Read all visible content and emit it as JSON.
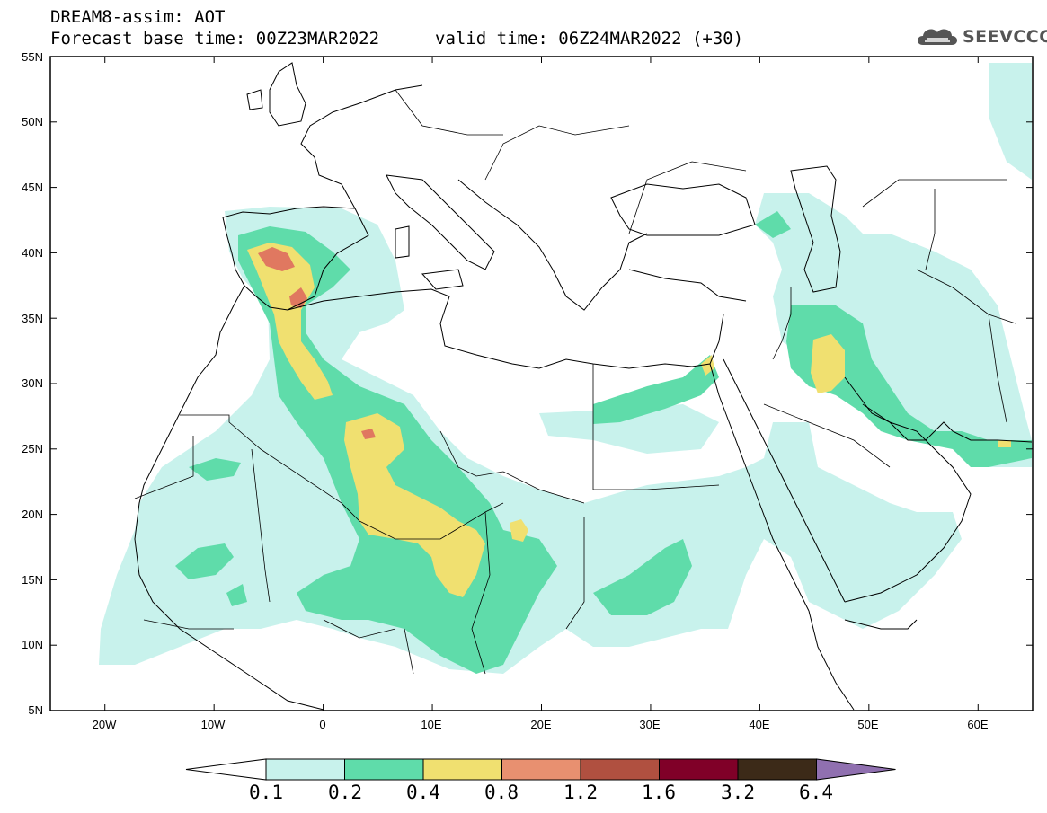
{
  "header": {
    "line1": "DREAM8-assim: AOT",
    "line2": "Forecast base time: 00Z23MAR2022",
    "valid_time": "valid time: 06Z24MAR2022 (+30)",
    "logo_text": "SEEVCCC"
  },
  "axes": {
    "lat_labels": [
      "55N",
      "50N",
      "45N",
      "40N",
      "35N",
      "30N",
      "25N",
      "20N",
      "15N",
      "10N",
      "5N"
    ],
    "lon_labels": [
      "20W",
      "10W",
      "0",
      "10E",
      "20E",
      "30E",
      "40E",
      "50E",
      "60E"
    ]
  },
  "colorbar": {
    "labels": [
      "0.1",
      "0.2",
      "0.4",
      "0.8",
      "1.2",
      "1.6",
      "3.2",
      "6.4"
    ],
    "colors": [
      "#c8f2ec",
      "#5fdcaa",
      "#f0e070",
      "#e89070",
      "#b05040",
      "#800028",
      "#3c2a18",
      "#9070b0"
    ]
  },
  "map_colors": {
    "level1": "#c8f2ec",
    "level2": "#5fdcaa",
    "level3": "#f0e070",
    "level4": "#e07860",
    "level5": "#c05848"
  }
}
